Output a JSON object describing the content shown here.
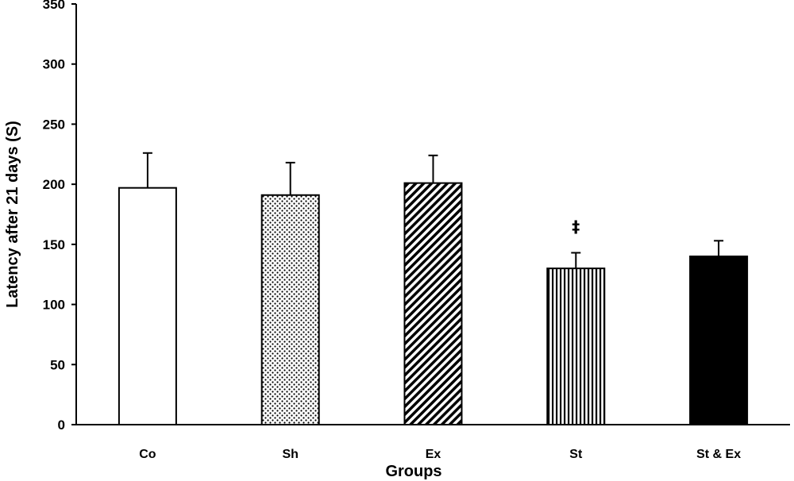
{
  "chart_data": {
    "type": "bar",
    "categories": [
      "Co",
      "Sh",
      "Ex",
      "St",
      "St & Ex"
    ],
    "values": [
      197,
      191,
      201,
      130,
      140
    ],
    "error_plus": [
      29,
      27,
      23,
      13,
      13
    ],
    "patterns": [
      "white",
      "dots",
      "diagonal",
      "vertical",
      "black"
    ],
    "annotations": [
      {
        "category": "St",
        "text": "‡"
      }
    ],
    "xlabel": "Groups",
    "ylabel": "Latency after 21 days (S)",
    "ylim": [
      0,
      350
    ],
    "yticks": [
      0,
      50,
      100,
      150,
      200,
      250,
      300,
      350
    ],
    "grid": false,
    "legend": "none",
    "colors": {
      "bar_stroke": "#000000",
      "bar_fill_dark": "#000000",
      "background": "#ffffff"
    }
  }
}
